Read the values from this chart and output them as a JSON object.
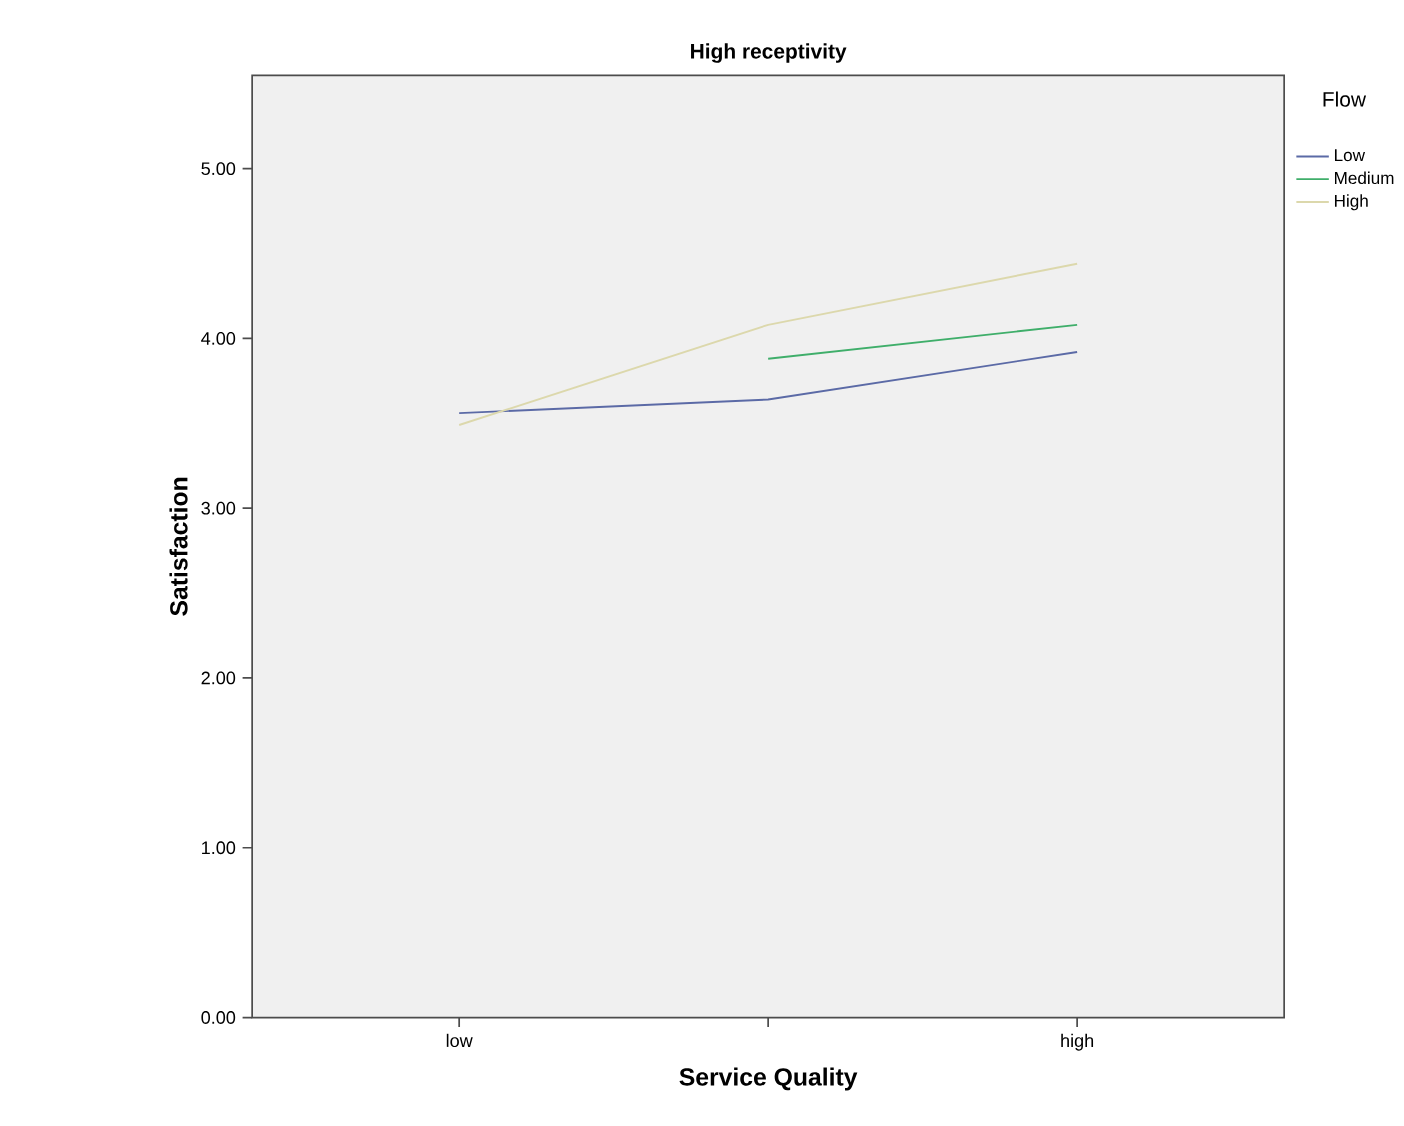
{
  "chart_data": {
    "type": "line",
    "title": "High receptivity",
    "xlabel": "Service Quality",
    "ylabel": "Satisfaction",
    "legend_title": "Flow",
    "categories": [
      "low",
      null,
      "high"
    ],
    "series": [
      {
        "name": "Low",
        "color": "#5b6aa6",
        "values": [
          3.56,
          3.64,
          3.92
        ]
      },
      {
        "name": "Medium",
        "color": "#3fae6a",
        "values": [
          null,
          3.88,
          4.08
        ]
      },
      {
        "name": "High",
        "color": "#dcd8ac",
        "values": [
          3.49,
          4.08,
          4.44
        ]
      }
    ],
    "ylim": [
      0,
      5.55
    ],
    "yticks": [
      {
        "value": 0,
        "label": "0.00"
      },
      {
        "value": 1,
        "label": "1.00"
      },
      {
        "value": 2,
        "label": "2.00"
      },
      {
        "value": 3,
        "label": "3.00"
      },
      {
        "value": 4,
        "label": "4.00"
      },
      {
        "value": 5,
        "label": "5.00"
      }
    ],
    "grid": false,
    "legend": "top right",
    "marker": "none",
    "line_style": "solid"
  }
}
